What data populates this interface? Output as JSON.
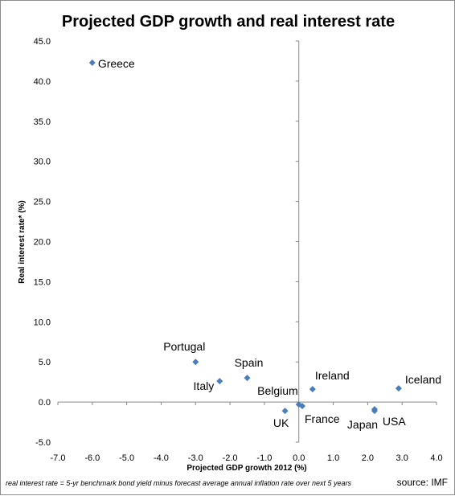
{
  "chart_data": {
    "type": "scatter",
    "title": "Projected GDP growth and real interest rate",
    "xlabel": "Projected GDP growth 2012 (%)",
    "ylabel": "Real interest rate* (%)",
    "xlim": [
      -7.0,
      4.0
    ],
    "ylim": [
      -5.0,
      45.0
    ],
    "x_ticks": [
      "-7.0",
      "-6.0",
      "-5.0",
      "-4.0",
      "-3.0",
      "-2.0",
      "-1.0",
      "0.0",
      "1.0",
      "2.0",
      "3.0",
      "4.0"
    ],
    "y_ticks": [
      "-5.0",
      "0.0",
      "5.0",
      "10.0",
      "15.0",
      "20.0",
      "25.0",
      "30.0",
      "35.0",
      "40.0",
      "45.0"
    ],
    "grid": false,
    "marker_color": "#4a7ebb",
    "points": [
      {
        "label": "Greece",
        "x": -6.0,
        "y": 42.3
      },
      {
        "label": "Portugal",
        "x": -3.0,
        "y": 5.0
      },
      {
        "label": "Italy",
        "x": -2.3,
        "y": 2.6
      },
      {
        "label": "Spain",
        "x": -1.5,
        "y": 3.0
      },
      {
        "label": "Belgium",
        "x": 0.0,
        "y": -0.3
      },
      {
        "label": "France",
        "x": 0.1,
        "y": -0.5
      },
      {
        "label": "UK",
        "x": -0.4,
        "y": -1.1
      },
      {
        "label": "Ireland",
        "x": 0.4,
        "y": 1.6
      },
      {
        "label": "Japan",
        "x": 2.2,
        "y": -0.9
      },
      {
        "label": "USA",
        "x": 2.2,
        "y": -1.1
      },
      {
        "label": "Iceland",
        "x": 2.9,
        "y": 1.7
      }
    ]
  },
  "footnote": "real interest rate = 5-yr benchmark bond yield minus forecast average annual inflation rate over next 5 years",
  "source": "source: IMF"
}
